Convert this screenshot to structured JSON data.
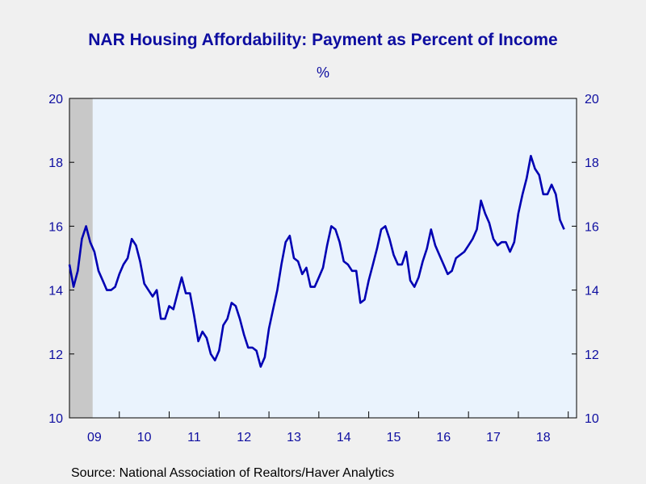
{
  "chart_title": "NAR Housing Affordability: Payment as Percent of Income",
  "unit_label": "%",
  "source_text": "Source:  National Association of Realtors/Haver Analytics",
  "colors": {
    "line": "#0000b3",
    "plot_background": "#eaf3fd",
    "recession_shade": "#c8c8c8",
    "text": "#0d0da0"
  },
  "chart_data": {
    "type": "line",
    "title": "NAR Housing Affordability: Payment as Percent of Income",
    "ylabel": "%",
    "ylim": [
      10,
      20
    ],
    "yticks": [
      10,
      12,
      14,
      16,
      18,
      20
    ],
    "xlim": [
      "2009-01",
      "2019-03"
    ],
    "xtick_labels": [
      "09",
      "10",
      "11",
      "12",
      "13",
      "14",
      "15",
      "16",
      "17",
      "18"
    ],
    "recession_shading": [
      "2009-01",
      "2009-06"
    ],
    "grid": false,
    "dual_y_axis": true,
    "frequency": "monthly",
    "series": [
      {
        "start": "2009-01",
        "values": [
          14.8,
          14.1,
          14.6,
          15.6,
          16.0,
          15.5,
          15.2,
          14.6,
          14.3,
          14.0,
          14.0,
          14.1,
          14.5,
          14.8,
          15.0,
          15.6,
          15.4,
          14.9,
          14.2,
          14.0,
          13.8,
          14.0,
          13.1,
          13.1,
          13.5,
          13.4,
          13.9,
          14.4,
          13.9,
          13.9,
          13.2,
          12.4,
          12.7,
          12.5,
          12.0,
          11.8,
          12.1,
          12.9,
          13.1,
          13.6,
          13.5,
          13.1,
          12.6,
          12.2,
          12.2,
          12.1,
          11.6,
          11.9,
          12.8,
          13.4,
          14.0,
          14.8,
          15.5,
          15.7,
          15.0,
          14.9,
          14.5,
          14.7,
          14.1,
          14.1,
          14.4,
          14.7,
          15.4,
          16.0,
          15.9,
          15.5,
          14.9,
          14.8,
          14.6,
          14.6,
          13.6,
          13.7,
          14.3,
          14.8,
          15.3,
          15.9,
          16.0,
          15.6,
          15.1,
          14.8,
          14.8,
          15.2,
          14.3,
          14.1,
          14.4,
          14.9,
          15.3,
          15.9,
          15.4,
          15.1,
          14.8,
          14.5,
          14.6,
          15.0,
          15.1,
          15.2,
          15.4,
          15.6,
          15.9,
          16.8,
          16.4,
          16.1,
          15.6,
          15.4,
          15.5,
          15.5,
          15.2,
          15.5,
          16.4,
          17.0,
          17.5,
          18.2,
          17.8,
          17.6,
          17.0,
          17.0,
          17.3,
          17.0,
          16.2,
          15.9
        ]
      }
    ]
  }
}
